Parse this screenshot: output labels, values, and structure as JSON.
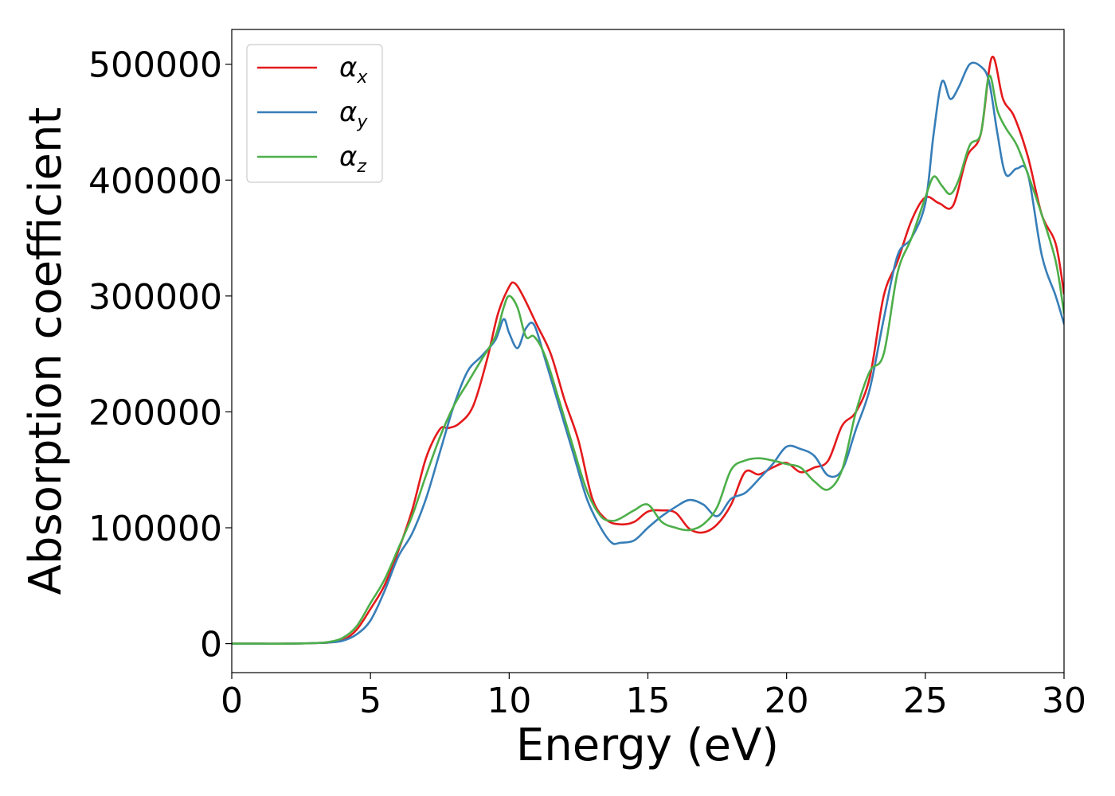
{
  "chart_data": {
    "type": "line",
    "xlabel": "Energy (eV)",
    "ylabel": "Absorption coefficient",
    "xlim": [
      0,
      30
    ],
    "ylim": [
      -25000,
      530000
    ],
    "xticks": [
      0,
      5,
      10,
      15,
      20,
      25,
      30
    ],
    "yticks": [
      0,
      100000,
      200000,
      300000,
      400000,
      500000
    ],
    "legend_position": "top-left",
    "grid": false,
    "series": [
      {
        "name": "α_x",
        "label_base": "α",
        "label_sub": "x",
        "color": "#e41a1c",
        "x": [
          0,
          1,
          2,
          3,
          3.5,
          4,
          4.5,
          5,
          5.5,
          6,
          6.5,
          7,
          7.5,
          7.8,
          8.2,
          8.7,
          9.2,
          9.6,
          10,
          10.2,
          10.5,
          11,
          11.5,
          12,
          12.5,
          13,
          13.5,
          14,
          14.5,
          15,
          15.5,
          16,
          16.5,
          17,
          17.5,
          18,
          18.5,
          19,
          19.5,
          20,
          20.5,
          21,
          21.5,
          22,
          22.5,
          23,
          23.5,
          24,
          24.5,
          25,
          25.5,
          26,
          26.5,
          27,
          27.4,
          27.8,
          28.2,
          28.7,
          29.2,
          29.7,
          30
        ],
        "y": [
          0,
          0,
          0,
          500,
          1000,
          3000,
          12000,
          30000,
          50000,
          80000,
          115000,
          160000,
          185000,
          186000,
          190000,
          205000,
          245000,
          285000,
          308000,
          311000,
          300000,
          275000,
          250000,
          210000,
          175000,
          125000,
          107000,
          103000,
          105000,
          114000,
          115000,
          113000,
          99000,
          96000,
          103000,
          120000,
          148000,
          146000,
          152000,
          156000,
          148000,
          152000,
          158000,
          188000,
          200000,
          230000,
          300000,
          330000,
          365000,
          385000,
          380000,
          378000,
          420000,
          440000,
          506000,
          470000,
          455000,
          420000,
          370000,
          345000,
          302000
        ]
      },
      {
        "name": "α_y",
        "label_base": "α",
        "label_sub": "y",
        "color": "#377eb8",
        "x": [
          0,
          1,
          2,
          3,
          3.5,
          4,
          4.5,
          5,
          5.5,
          6,
          6.5,
          7,
          7.5,
          8,
          8.5,
          9,
          9.5,
          9.8,
          10,
          10.3,
          10.6,
          10.9,
          11.3,
          11.8,
          12.3,
          12.8,
          13.3,
          13.7,
          14,
          14.5,
          15,
          15.5,
          16,
          16.5,
          17,
          17.5,
          18,
          18.5,
          19,
          19.5,
          20,
          20.5,
          21,
          21.5,
          22,
          22.5,
          23,
          23.5,
          24,
          24.5,
          25,
          25.3,
          25.6,
          25.9,
          26.2,
          26.6,
          27,
          27.3,
          27.6,
          27.9,
          28.3,
          28.7,
          29.2,
          29.7,
          30
        ],
        "y": [
          0,
          0,
          0,
          500,
          1000,
          2500,
          8000,
          20000,
          45000,
          75000,
          95000,
          125000,
          165000,
          205000,
          235000,
          248000,
          262000,
          280000,
          268000,
          255000,
          272000,
          275000,
          245000,
          205000,
          165000,
          125000,
          100000,
          87000,
          87000,
          89000,
          100000,
          110000,
          118000,
          124000,
          120000,
          110000,
          125000,
          130000,
          142000,
          155000,
          170000,
          168000,
          162000,
          145000,
          150000,
          185000,
          220000,
          280000,
          335000,
          350000,
          380000,
          440000,
          485000,
          470000,
          480000,
          500000,
          498000,
          485000,
          440000,
          405000,
          410000,
          405000,
          335000,
          300000,
          276000
        ]
      },
      {
        "name": "α_z",
        "label_base": "α",
        "label_sub": "z",
        "color": "#4daf4a",
        "x": [
          0,
          1,
          2,
          3,
          3.5,
          4,
          4.5,
          5,
          5.5,
          6,
          6.5,
          7,
          7.5,
          8,
          8.5,
          9,
          9.5,
          9.8,
          10,
          10.3,
          10.6,
          10.9,
          11.3,
          11.8,
          12.3,
          12.8,
          13.3,
          13.7,
          14,
          14.5,
          15,
          15.5,
          16,
          16.5,
          17,
          17.5,
          18,
          18.5,
          19,
          19.5,
          20,
          20.5,
          21,
          21.5,
          22,
          22.5,
          23,
          23.5,
          24,
          24.5,
          25,
          25.3,
          25.6,
          25.9,
          26.2,
          26.6,
          27,
          27.3,
          27.6,
          27.9,
          28.3,
          28.7,
          29.2,
          29.7,
          30
        ],
        "y": [
          0,
          0,
          0,
          500,
          1500,
          5000,
          15000,
          35000,
          55000,
          82000,
          110000,
          145000,
          178000,
          205000,
          225000,
          245000,
          265000,
          290000,
          300000,
          290000,
          265000,
          265000,
          248000,
          210000,
          170000,
          132000,
          110000,
          106000,
          108000,
          115000,
          120000,
          105000,
          100000,
          98000,
          103000,
          118000,
          150000,
          158000,
          160000,
          158000,
          155000,
          152000,
          140000,
          133000,
          150000,
          200000,
          235000,
          250000,
          320000,
          350000,
          385000,
          403000,
          395000,
          388000,
          400000,
          430000,
          440000,
          490000,
          460000,
          445000,
          430000,
          405000,
          370000,
          330000,
          285000
        ]
      }
    ]
  }
}
